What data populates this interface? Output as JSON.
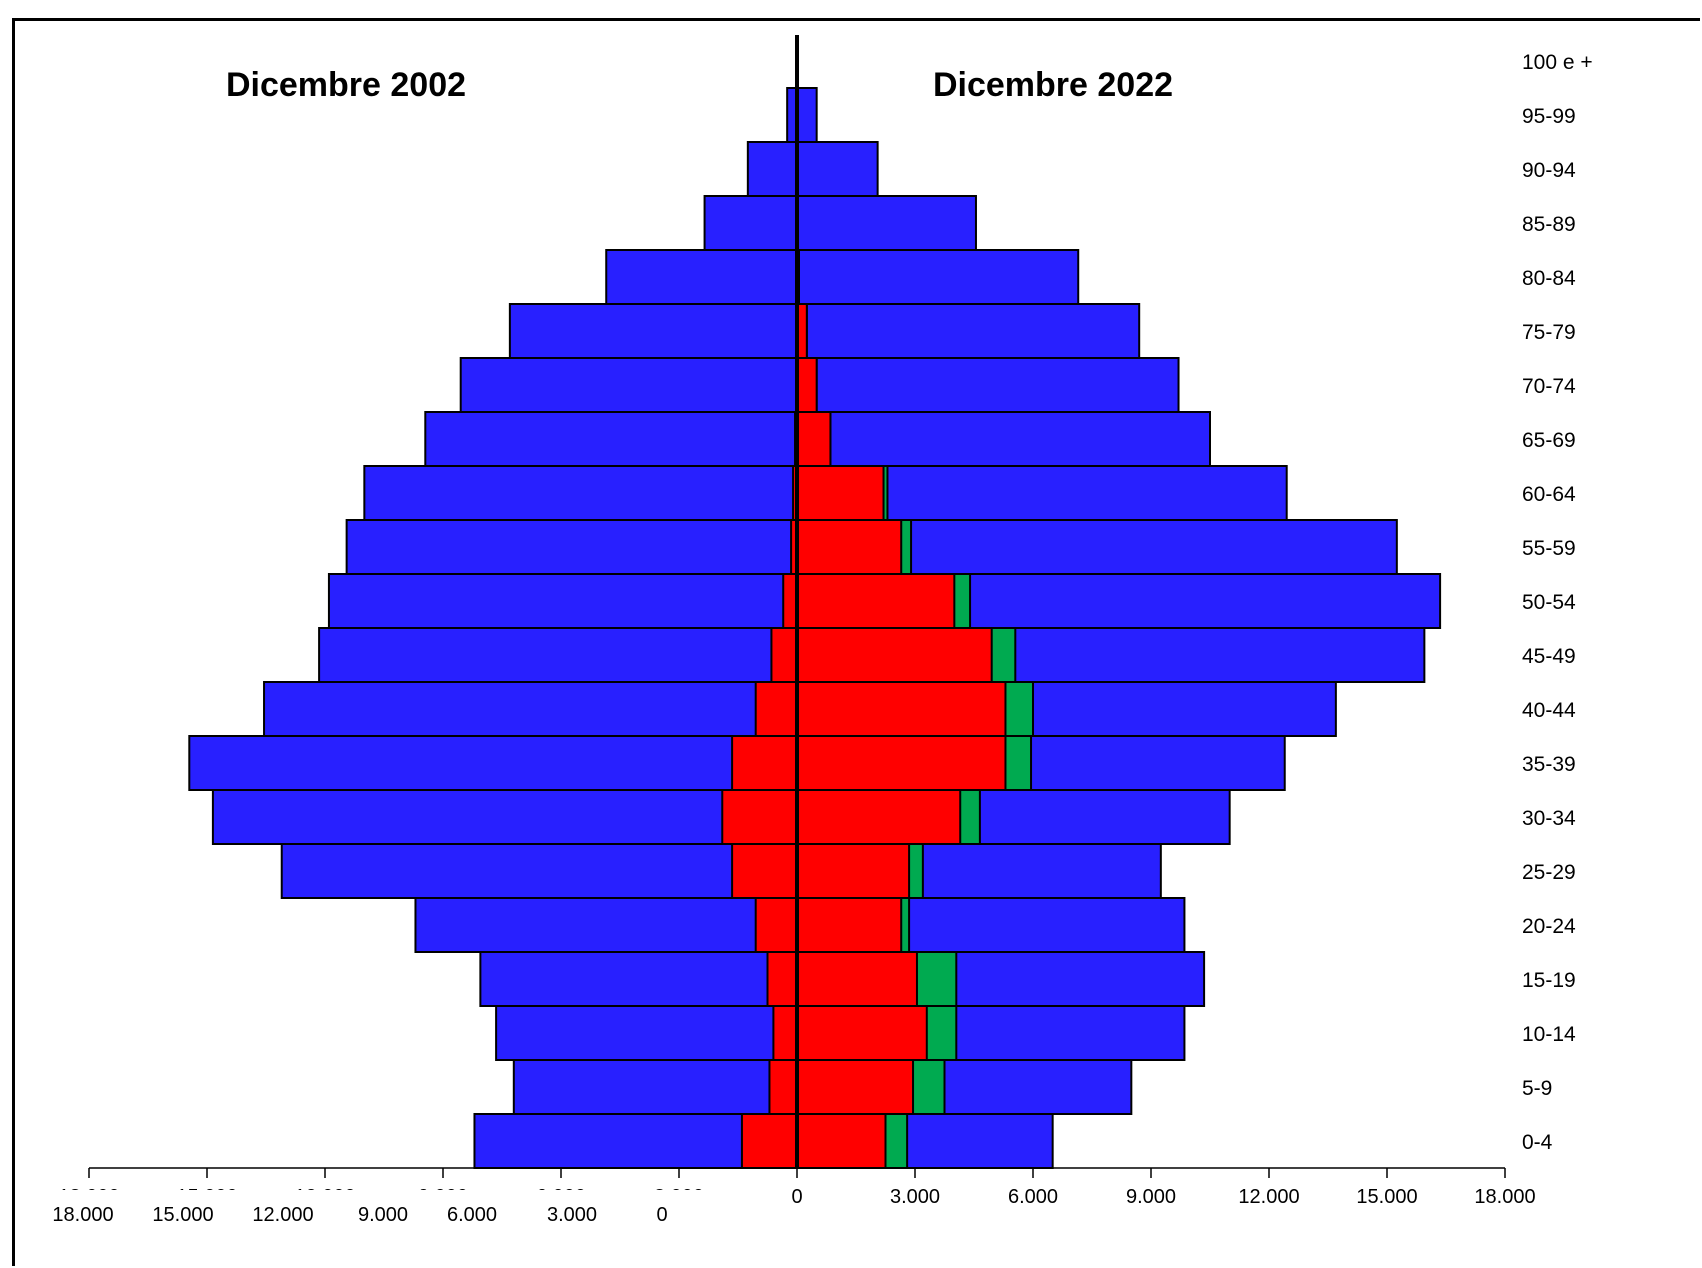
{
  "chart_data": {
    "type": "bar",
    "orientation": "horizontal",
    "titles": {
      "left": "Dicembre 2002",
      "right": "Dicembre 2022"
    },
    "categories": [
      "0-4",
      "5-9",
      "10-14",
      "15-19",
      "20-24",
      "25-29",
      "30-34",
      "35-39",
      "40-44",
      "45-49",
      "50-54",
      "55-59",
      "60-64",
      "65-69",
      "70-74",
      "75-79",
      "80-84",
      "85-89",
      "90-94",
      "95-99",
      "100 e +"
    ],
    "xlim": [
      -18000,
      18000
    ],
    "colors": {
      "blue": "#2820FF",
      "red": "#FF0000",
      "green": "#00AA50",
      "outline": "#000000"
    },
    "left_2002": {
      "total": [
        8200,
        7200,
        7650,
        8050,
        9700,
        13100,
        14850,
        15450,
        13550,
        12150,
        11900,
        11450,
        11000,
        9450,
        8550,
        7300,
        4850,
        2350,
        1250,
        250,
        0
      ],
      "red": [
        1400,
        700,
        600,
        750,
        1050,
        1650,
        1900,
        1650,
        1050,
        650,
        350,
        150,
        100,
        50,
        0,
        0,
        0,
        0,
        0,
        0,
        0
      ]
    },
    "right_2022": {
      "red": [
        2250,
        2950,
        3300,
        3050,
        2650,
        2850,
        4150,
        5300,
        5300,
        4950,
        4000,
        2650,
        2200,
        850,
        500,
        250,
        50,
        0,
        0,
        0,
        0
      ],
      "green": [
        550,
        800,
        750,
        1000,
        200,
        350,
        500,
        650,
        700,
        600,
        400,
        250,
        100,
        0,
        0,
        0,
        0,
        0,
        0,
        0,
        0
      ],
      "total": [
        6500,
        8500,
        9850,
        10350,
        9850,
        9250,
        11000,
        12400,
        13700,
        15950,
        16350,
        15250,
        12450,
        10500,
        9700,
        8700,
        7150,
        4550,
        2050,
        500,
        0
      ]
    },
    "axis": {
      "ticks": [
        -18000,
        -15000,
        -12000,
        -9000,
        -6000,
        -3000,
        0,
        3000,
        6000,
        9000,
        12000,
        15000,
        18000
      ],
      "right_labels": [
        "0",
        "3.000",
        "6.000",
        "9.000",
        "12.000",
        "15.000",
        "18.000"
      ],
      "left_labels_clipped": [
        "18.000",
        "15.000",
        "12.000",
        "9.000",
        "6.000",
        "3.000"
      ],
      "left_labels": [
        "18.000",
        "15.000",
        "12.000",
        "9.000",
        "6.000",
        "3.000",
        "0"
      ]
    }
  }
}
